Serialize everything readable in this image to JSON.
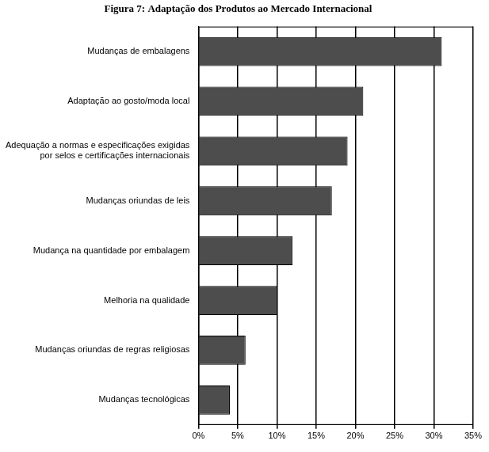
{
  "chart_data": {
    "type": "bar",
    "orientation": "horizontal",
    "title": "Figura 7: Adaptação dos Produtos ao Mercado Internacional",
    "categories": [
      "Mudanças de embalagens",
      "Adaptação ao gosto/moda local",
      "Adequação a normas e especificações exigidas por selos e certificações internacionais",
      "Mudanças oriundas de leis",
      "Mudança na quantidade por embalagem",
      "Melhoria na qualidade",
      "Mudanças oriundas de regras religiosas",
      "Mudanças tecnológicas"
    ],
    "values": [
      31,
      21,
      19,
      17,
      12,
      10,
      6,
      4
    ],
    "color": "#4d4d4d",
    "xlim": [
      0,
      35
    ],
    "xticks": [
      {
        "value": 0,
        "label": "0%"
      },
      {
        "value": 5,
        "label": "5%"
      },
      {
        "value": 10,
        "label": "10%"
      },
      {
        "value": 15,
        "label": "15%"
      },
      {
        "value": 20,
        "label": "20%"
      },
      {
        "value": 25,
        "label": "25%"
      },
      {
        "value": 30,
        "label": "30%"
      },
      {
        "value": 35,
        "label": "35%"
      }
    ],
    "grid": true
  }
}
